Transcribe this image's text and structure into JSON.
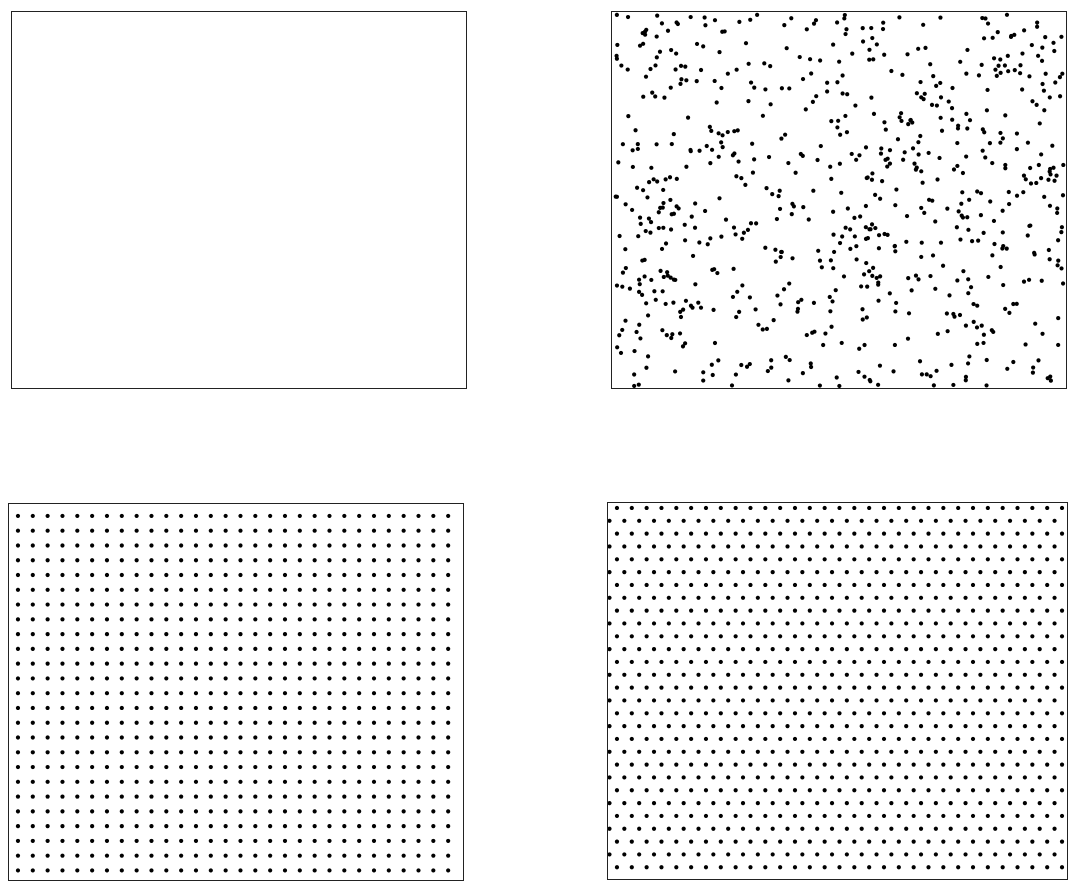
{
  "colors": {
    "background": "#ffffff",
    "frame": "#222222",
    "dot": "#000000"
  },
  "panels": [
    {
      "id": "empty",
      "pattern": "none"
    },
    {
      "id": "random",
      "pattern": "uniform-random",
      "point_count": 720,
      "seed": 1729
    },
    {
      "id": "square",
      "pattern": "square-lattice",
      "columns": 30,
      "rows": 25
    },
    {
      "id": "hex",
      "pattern": "triangular-lattice",
      "columns": 31,
      "rows": 29
    }
  ]
}
